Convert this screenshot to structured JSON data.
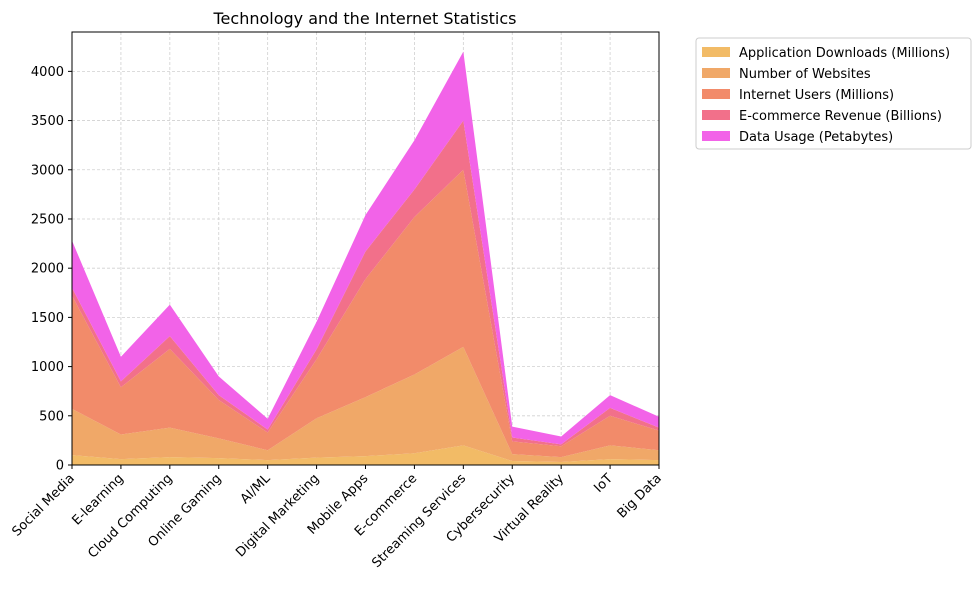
{
  "chart_data": {
    "type": "area",
    "stacked": true,
    "title": "Technology and the Internet Statistics",
    "xlabel": "",
    "ylabel": "",
    "categories": [
      "Social Media",
      "E-learning",
      "Cloud Computing",
      "Online Gaming",
      "AI/ML",
      "Digital Marketing",
      "Mobile Apps",
      "E-commerce",
      "Streaming Services",
      "Cybersecurity",
      "Virtual Reality",
      "IoT",
      "Big Data"
    ],
    "ylim": [
      0,
      4400
    ],
    "yticks": [
      "0",
      "500",
      "1000",
      "1500",
      "2000",
      "2500",
      "3000",
      "3500",
      "4000"
    ],
    "grid": true,
    "legend_position": "outside top-right",
    "series": [
      {
        "name": "Application Downloads (Millions)",
        "color": "#f2bb66",
        "values": [
          100,
          60,
          80,
          70,
          50,
          75,
          90,
          120,
          200,
          40,
          30,
          60,
          50
        ]
      },
      {
        "name": "Number of Websites",
        "color": "#f0a868",
        "values": [
          470,
          250,
          300,
          200,
          100,
          400,
          600,
          800,
          1000,
          70,
          50,
          140,
          100
        ]
      },
      {
        "name": "Internet Users (Millions)",
        "color": "#f28b6a",
        "values": [
          1150,
          480,
          800,
          390,
          180,
          600,
          1200,
          1600,
          1800,
          130,
          110,
          300,
          200
        ]
      },
      {
        "name": "E-commerce Revenue (Billions)",
        "color": "#f2708a",
        "values": [
          80,
          60,
          130,
          50,
          30,
          100,
          280,
          280,
          500,
          40,
          20,
          80,
          30
        ]
      },
      {
        "name": "Data Usage (Petabytes)",
        "color": "#f263e8",
        "values": [
          480,
          250,
          320,
          190,
          110,
          280,
          370,
          500,
          700,
          110,
          80,
          130,
          110
        ]
      }
    ]
  }
}
